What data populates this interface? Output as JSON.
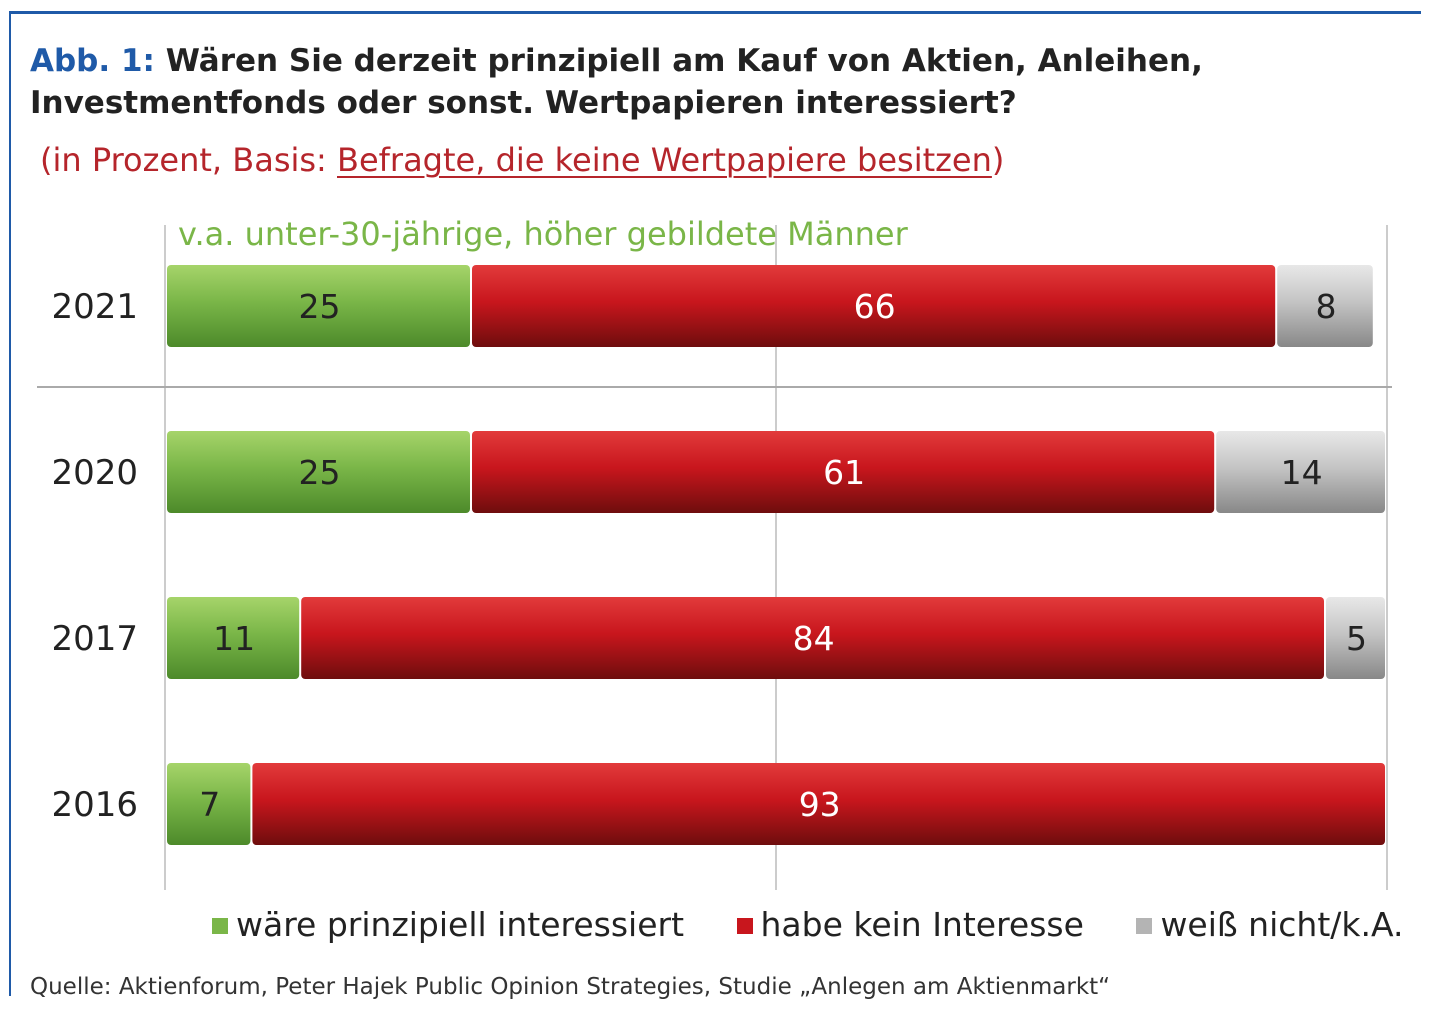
{
  "title": {
    "lead": "Abb. 1:",
    "text": "Wären Sie derzeit prinzipiell am Kauf von Aktien, Anleihen, Investmentfonds oder sonst. Wertpapieren interessiert?"
  },
  "subtitle": {
    "prefix": "(in Prozent, Basis: ",
    "underlined": "Befragte, die keine Wertpapiere besitzen",
    "suffix": ")"
  },
  "source": "Quelle: Aktienforum, Peter Hajek Public Opinion Strategies, Studie „Anlegen am Aktienmarkt“",
  "colors": {
    "green": "#7ab648",
    "red": "#c8161d",
    "gray": "#b4b4b4",
    "annotation": "#7ab648"
  },
  "chart_data": {
    "type": "bar",
    "orientation": "horizontal",
    "stacked": true,
    "categories": [
      "2021",
      "2020",
      "2017",
      "2016"
    ],
    "series": [
      {
        "name": "wäre prinzipiell interessiert",
        "color": "#7ab648",
        "values": [
          25,
          25,
          11,
          7
        ]
      },
      {
        "name": "habe kein Interesse",
        "color": "#c8161d",
        "values": [
          66,
          61,
          84,
          93
        ]
      },
      {
        "name": "weiß nicht/k.A.",
        "color": "#b4b4b4",
        "values": [
          8,
          14,
          5,
          null
        ]
      }
    ],
    "xlim": [
      0,
      100
    ],
    "annotation": "v.a. unter-30-jährige, höher gebildete Männer",
    "legend_position": "bottom"
  }
}
